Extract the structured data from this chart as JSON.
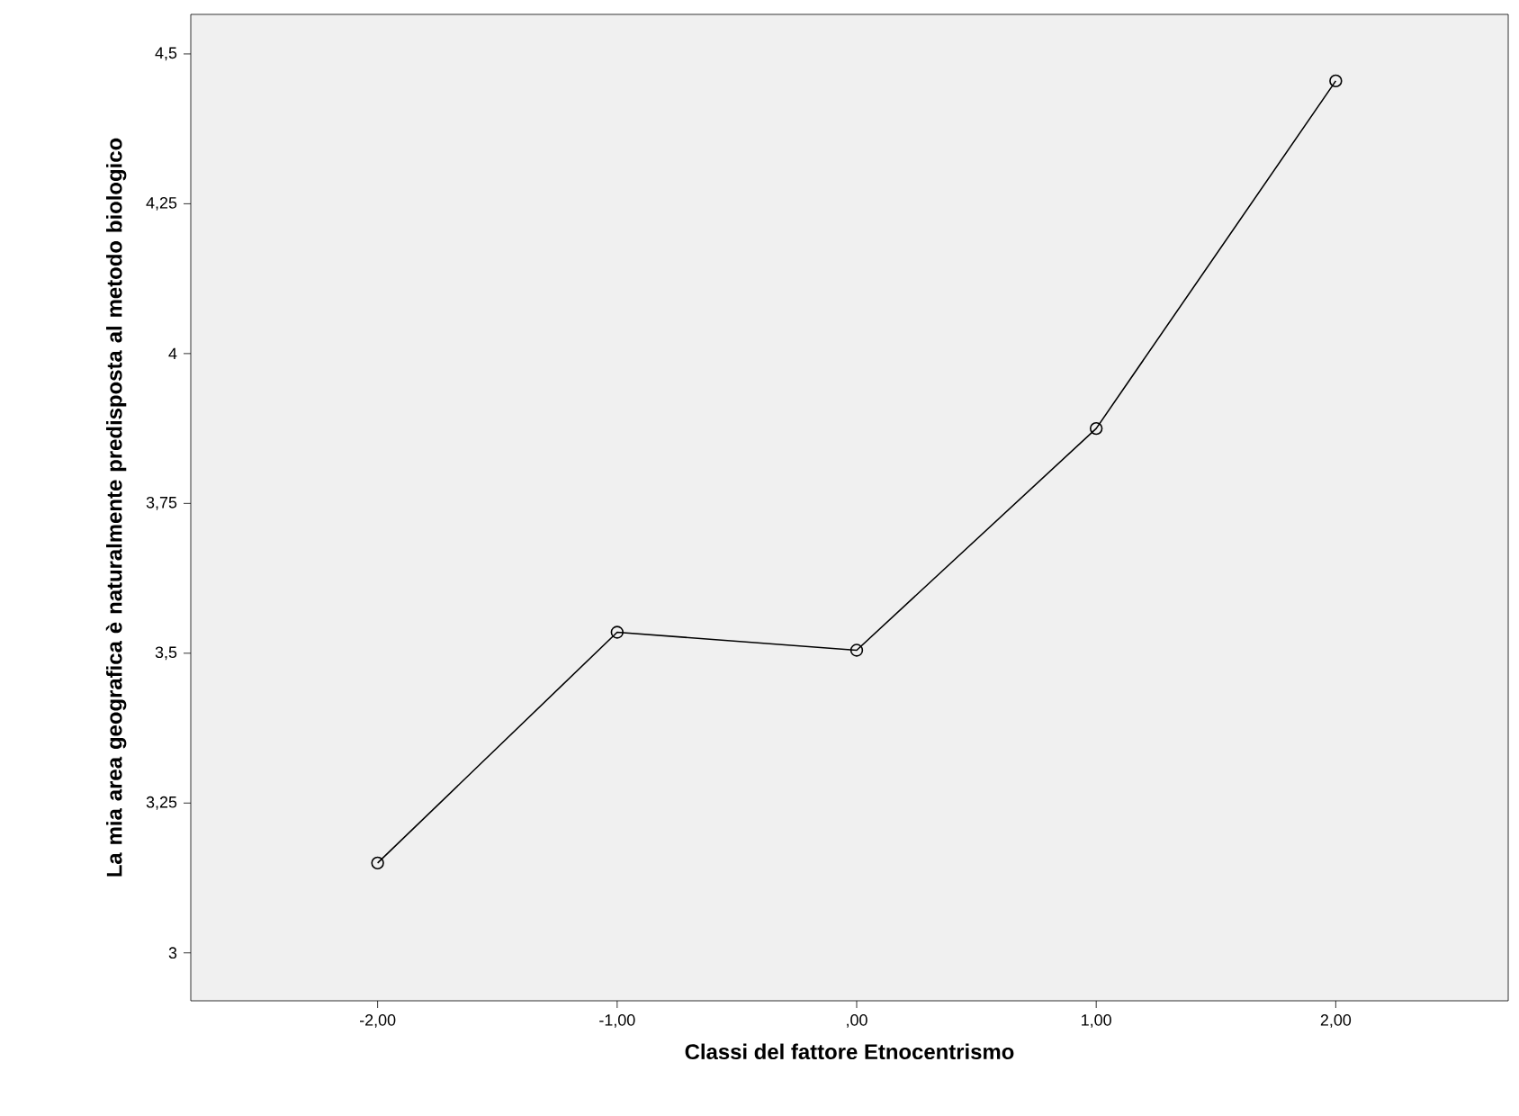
{
  "chart_data": {
    "type": "line",
    "xlabel": "Classi del fattore Etnocentrismo",
    "ylabel": "La mia area geografica è naturalmente predisposta al metodo biologico",
    "x": [
      -2,
      -1,
      0,
      1,
      2
    ],
    "values": [
      3.15,
      3.535,
      3.505,
      3.875,
      4.455
    ],
    "color": "#000000",
    "marker": "circle",
    "line_style": "solid",
    "grid": false,
    "xlim": [
      -2.78,
      2.72
    ],
    "xticks": [
      {
        "value": -2,
        "label": "-2,00"
      },
      {
        "value": -1,
        "label": "-1,00"
      },
      {
        "value": 0,
        "label": ",00"
      },
      {
        "value": 1,
        "label": "1,00"
      },
      {
        "value": 2,
        "label": "2,00"
      }
    ],
    "ylim": [
      2.92,
      4.566
    ],
    "yticks": [
      3,
      {
        "value": 3.25,
        "label": "3,25"
      },
      {
        "value": 3.5,
        "label": "3,5"
      },
      {
        "value": 3.75,
        "label": "3,75"
      },
      4,
      {
        "value": 4.25,
        "label": "4,25"
      },
      {
        "value": 4.5,
        "label": "4,5"
      }
    ]
  }
}
